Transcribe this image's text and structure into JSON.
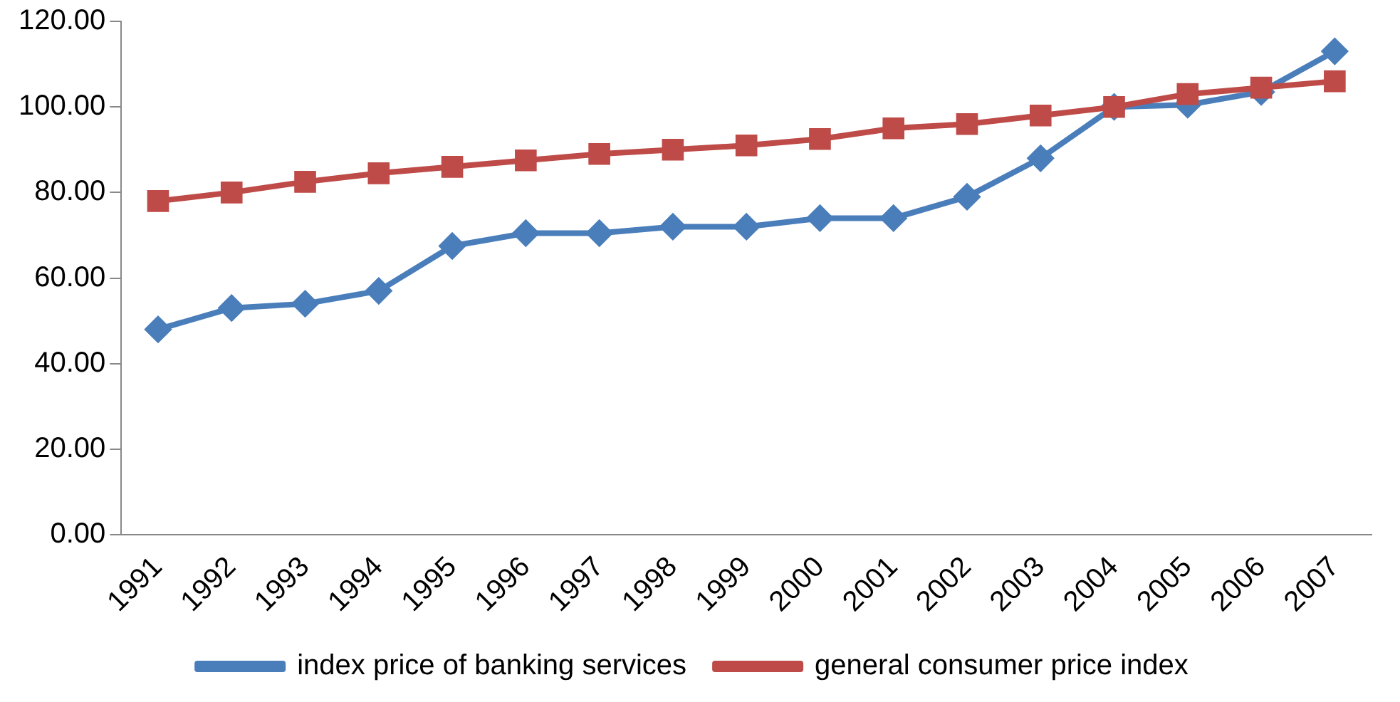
{
  "chart_data": {
    "type": "line",
    "categories": [
      "1991",
      "1992",
      "1993",
      "1994",
      "1995",
      "1996",
      "1997",
      "1998",
      "1999",
      "2000",
      "2001",
      "2002",
      "2003",
      "2004",
      "2005",
      "2006",
      "2007"
    ],
    "series": [
      {
        "name": "index price of banking services",
        "color": "#4a7ebb",
        "marker": "diamond",
        "values": [
          48,
          53,
          54,
          57,
          67.5,
          70.5,
          70.5,
          72,
          72,
          74,
          74,
          79,
          88,
          100,
          100.5,
          103.5,
          113
        ]
      },
      {
        "name": "general consumer price index",
        "color": "#be4b48",
        "marker": "square",
        "values": [
          78,
          80,
          82.5,
          84.5,
          86,
          87.5,
          89,
          90,
          91,
          92.5,
          95,
          96,
          98,
          100,
          103,
          104.5,
          106
        ]
      }
    ],
    "ylim": [
      0,
      120
    ],
    "yticks": [
      {
        "value": 0,
        "label": "0.00"
      },
      {
        "value": 20,
        "label": "20.00"
      },
      {
        "value": 40,
        "label": "40.00"
      },
      {
        "value": 60,
        "label": "60.00"
      },
      {
        "value": 80,
        "label": "80.00"
      },
      {
        "value": 100,
        "label": "100.00"
      },
      {
        "value": 120,
        "label": "120.00"
      }
    ],
    "grid": false,
    "legend": "bottom",
    "line_style": "solid"
  }
}
